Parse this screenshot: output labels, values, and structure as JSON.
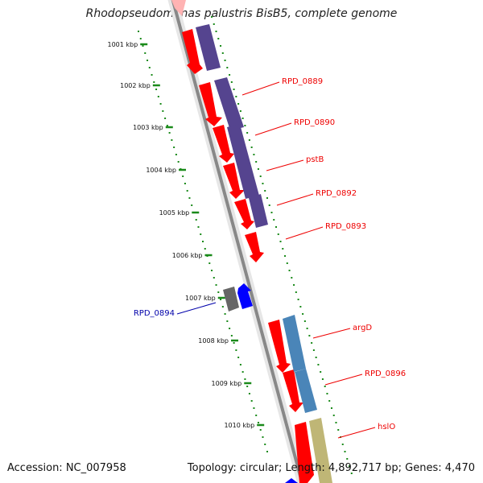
{
  "title": "Rhodopseudomonas palustris BisB5, complete genome",
  "footer": {
    "accession": "Accession: NC_007958",
    "summary": "Topology: circular; Length: 4,892,717 bp; Genes: 4,470"
  },
  "colors": {
    "forward_cds": "#ff0000",
    "reverse_cds": "#0000ff",
    "purple_block": "#55448f",
    "steelblue_block": "#4a85b8",
    "khaki_block": "#bfb676",
    "gray_block": "#666666",
    "backbone": "#888888",
    "ticks": "#1a8a1a",
    "label_forward": "#ee0000",
    "label_reverse": "#0000aa"
  },
  "scale_labels": [
    "1001 kbp",
    "1002 kbp",
    "1003 kbp",
    "1004 kbp",
    "1005 kbp",
    "1006 kbp",
    "1007 kbp",
    "1008 kbp",
    "1009 kbp",
    "1010 kbp"
  ],
  "gene_labels": [
    {
      "text": "RPD_0889",
      "strand": "forward"
    },
    {
      "text": "RPD_0890",
      "strand": "forward"
    },
    {
      "text": "pstB",
      "strand": "forward"
    },
    {
      "text": "RPD_0892",
      "strand": "forward"
    },
    {
      "text": "RPD_0893",
      "strand": "forward"
    },
    {
      "text": "RPD_0894",
      "strand": "reverse"
    },
    {
      "text": "argD",
      "strand": "forward"
    },
    {
      "text": "RPD_0896",
      "strand": "forward"
    },
    {
      "text": "hslO",
      "strand": "forward"
    }
  ]
}
